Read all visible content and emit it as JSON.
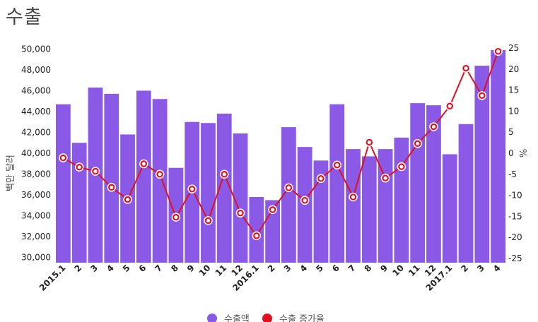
{
  "title": "수출",
  "chart_data": {
    "type": "bar",
    "title": "수출",
    "categories": [
      "2015.1",
      "2",
      "3",
      "4",
      "5",
      "6",
      "7",
      "8",
      "9",
      "10",
      "11",
      "12",
      "2016.1",
      "2",
      "3",
      "4",
      "5",
      "6",
      "7",
      "8",
      "9",
      "10",
      "11",
      "12",
      "2017.1",
      "2",
      "3",
      "4"
    ],
    "ylabel": "백만 달러",
    "y2label": "%",
    "ylim": [
      29500,
      50500
    ],
    "y2lim": [
      -26,
      26
    ],
    "yticks": [
      30000,
      32000,
      34000,
      36000,
      38000,
      40000,
      42000,
      44000,
      46000,
      48000,
      50000
    ],
    "yticklabels": [
      "30,000",
      "32,000",
      "34,000",
      "36,000",
      "38,000",
      "40,000",
      "42,000",
      "44,000",
      "46,000",
      "48,000",
      "50,000"
    ],
    "y2ticks": [
      -25,
      -20,
      -15,
      -10,
      -5,
      0,
      5,
      10,
      15,
      20,
      25
    ],
    "y2ticklabels": [
      "-25",
      "-20",
      "-15",
      "-10",
      "-5",
      "0",
      "5",
      "10",
      "15",
      "20",
      "25"
    ],
    "series": [
      {
        "name": "수출액",
        "type": "bar",
        "axis": "left",
        "color": "#8a5ae6",
        "values": [
          44700,
          41000,
          46300,
          45700,
          41800,
          46000,
          45200,
          38600,
          43000,
          42900,
          43800,
          41900,
          35800,
          35500,
          42500,
          40600,
          39300,
          44700,
          40400,
          39700,
          40400,
          41500,
          44800,
          44600,
          39900,
          42800,
          48400,
          49900
        ]
      },
      {
        "name": "수출 증가율",
        "type": "line",
        "axis": "right",
        "color": "#e01020",
        "values": [
          -1.1,
          -3.3,
          -4.3,
          -8.1,
          -11.0,
          -2.5,
          -5.0,
          -15.2,
          -8.5,
          -16.0,
          -5.0,
          -14.2,
          -19.6,
          -13.4,
          -8.2,
          -11.2,
          -6.0,
          -2.8,
          -10.4,
          2.6,
          -5.9,
          -3.2,
          2.3,
          6.3,
          11.2,
          20.2,
          13.7,
          24.2
        ]
      }
    ],
    "grid": false,
    "legend_position": "bottom"
  }
}
